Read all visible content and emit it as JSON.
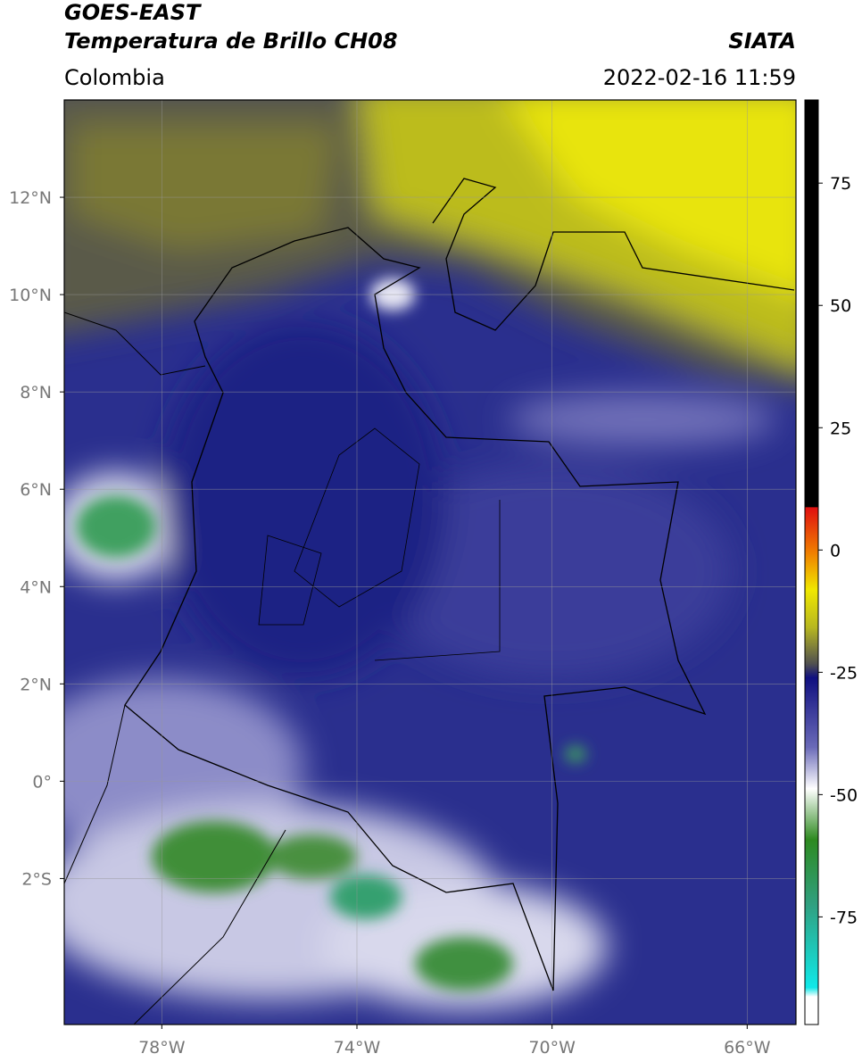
{
  "header": {
    "title_line1": "GOES-EAST",
    "title_line2": "Temperatura de Brillo CH08",
    "source": "SIATA",
    "region": "Colombia",
    "timestamp": "2022-02-16 11:59"
  },
  "map": {
    "lon_range": [
      -80,
      -65
    ],
    "lat_range": [
      -5,
      14
    ],
    "lon_ticks": [
      {
        "value": -78,
        "label": "78°W"
      },
      {
        "value": -74,
        "label": "74°W"
      },
      {
        "value": -70,
        "label": "70°W"
      },
      {
        "value": -66,
        "label": "66°W"
      }
    ],
    "lat_ticks": [
      {
        "value": 12,
        "label": "12°N"
      },
      {
        "value": 10,
        "label": "10°N"
      },
      {
        "value": 8,
        "label": "8°N"
      },
      {
        "value": 6,
        "label": "6°N"
      },
      {
        "value": 4,
        "label": "4°N"
      },
      {
        "value": 2,
        "label": "2°N"
      },
      {
        "value": 0,
        "label": "0°"
      },
      {
        "value": -2,
        "label": "2°S"
      }
    ]
  },
  "colorbar": {
    "range": [
      -97,
      92
    ],
    "ticks": [
      75,
      50,
      25,
      0,
      -25,
      -50,
      -75
    ]
  }
}
